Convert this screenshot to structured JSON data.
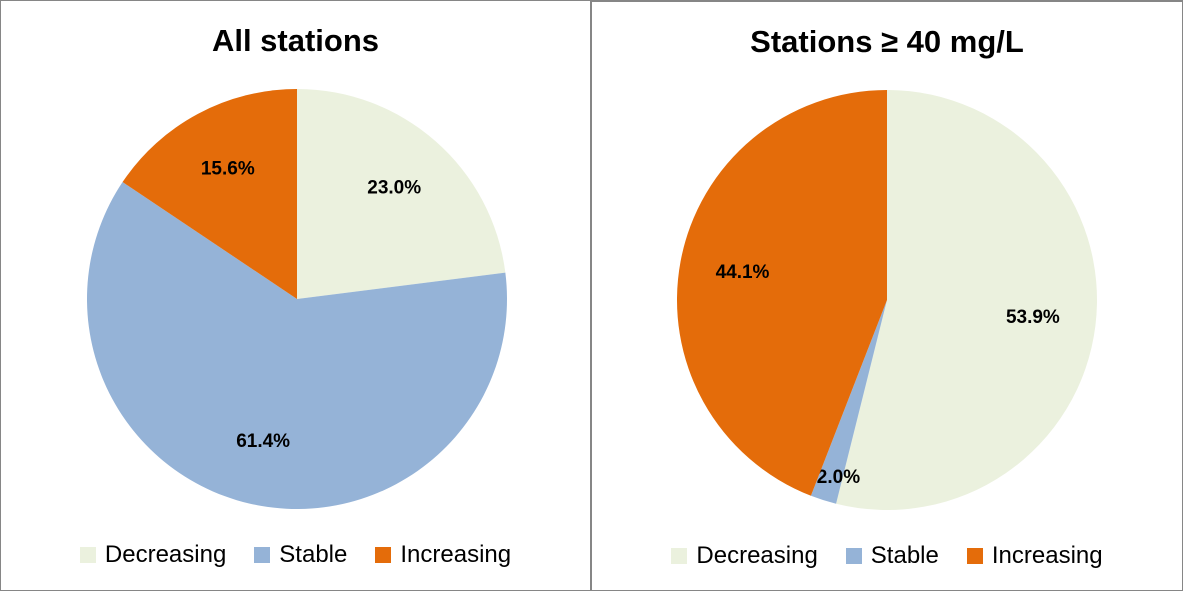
{
  "chart_data": [
    {
      "type": "pie",
      "title": "All stations",
      "categories": [
        "Decreasing",
        "Stable",
        "Increasing"
      ],
      "values": [
        23.0,
        61.4,
        15.6
      ],
      "labels": [
        "23.0%",
        "61.4%",
        "15.6%"
      ],
      "colors": [
        "#ebf1de",
        "#95b3d7",
        "#e46c0a"
      ],
      "legend": "bottom"
    },
    {
      "type": "pie",
      "title": "Stations ≥ 40 mg/L",
      "categories": [
        "Decreasing",
        "Stable",
        "Increasing"
      ],
      "values": [
        53.9,
        2.0,
        44.1
      ],
      "labels": [
        "53.9%",
        "2.0%",
        "44.1%"
      ],
      "colors": [
        "#ebf1de",
        "#95b3d7",
        "#e46c0a"
      ],
      "legend": "bottom"
    }
  ]
}
